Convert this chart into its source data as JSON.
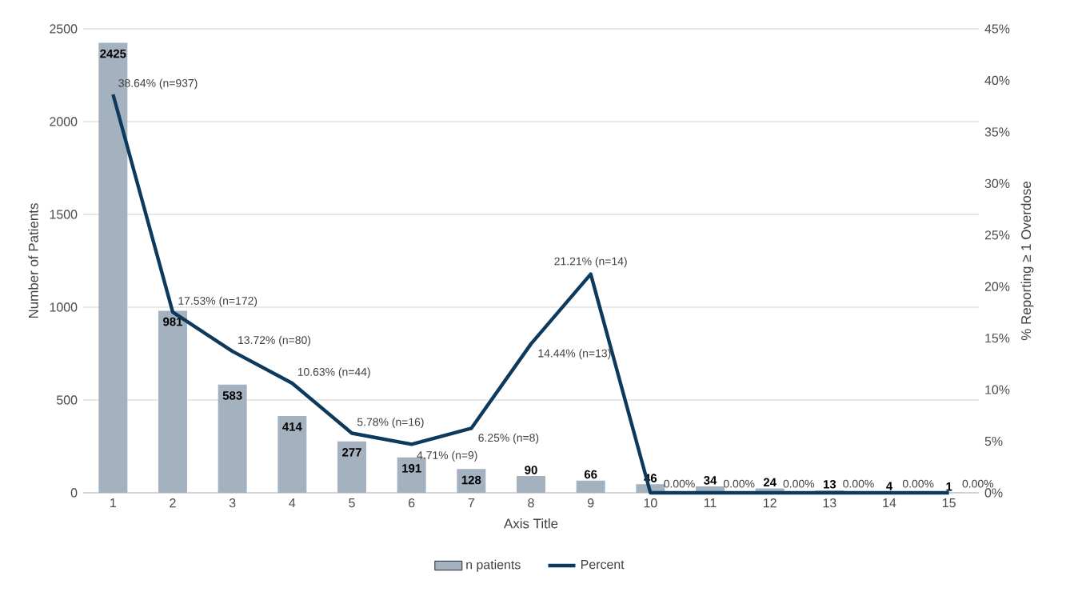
{
  "chart_data": {
    "type": "bar",
    "xlabel": "Axis Title",
    "ylabel": "Number of Patients",
    "y2label": "% Reporting ≥ 1 Overdose",
    "categories": [
      "1",
      "2",
      "3",
      "4",
      "5",
      "6",
      "7",
      "8",
      "9",
      "10",
      "11",
      "12",
      "13",
      "14",
      "15"
    ],
    "series": [
      {
        "name": "n patients",
        "color": "#a4b1be",
        "values": [
          2425,
          981,
          583,
          414,
          277,
          191,
          128,
          90,
          66,
          46,
          34,
          24,
          13,
          4,
          1
        ],
        "value_labels": [
          "2425",
          "981",
          "583",
          "414",
          "277",
          "191",
          "128",
          "90",
          "66",
          "46",
          "34",
          "24",
          "13",
          "4",
          "1"
        ]
      },
      {
        "name": "Percent",
        "type": "line",
        "axis": "y2",
        "color": "#0d3a5c",
        "values": [
          38.64,
          17.53,
          13.72,
          10.63,
          5.78,
          4.71,
          6.25,
          14.44,
          21.21,
          0,
          0,
          0,
          0,
          0,
          0
        ],
        "value_labels": [
          "38.64% (n=937)",
          "17.53% (n=172)",
          "13.72% (n=80)",
          "10.63% (n=44)",
          "5.78% (n=16)",
          "4.71% (n=9)",
          "6.25% (n=8)",
          "14.44% (n=13)",
          "21.21% (n=14)",
          "0.00%",
          "0.00%",
          "0.00%",
          "0.00%",
          "0.00%",
          "0.00%"
        ]
      }
    ],
    "ylim": [
      0,
      2500
    ],
    "yticks": [
      0,
      500,
      1000,
      1500,
      2000,
      2500
    ],
    "y2lim": [
      0,
      45
    ],
    "y2ticks": [
      {
        "value": 0,
        "label": "0%"
      },
      {
        "value": 5,
        "label": "5%"
      },
      {
        "value": 10,
        "label": "10%"
      },
      {
        "value": 15,
        "label": "15%"
      },
      {
        "value": 20,
        "label": "20%"
      },
      {
        "value": 25,
        "label": "25%"
      },
      {
        "value": 30,
        "label": "30%"
      },
      {
        "value": 35,
        "label": "35%"
      },
      {
        "value": 40,
        "label": "40%"
      },
      {
        "value": 45,
        "label": "45%"
      }
    ],
    "grid": "y",
    "legend": "bottom"
  }
}
